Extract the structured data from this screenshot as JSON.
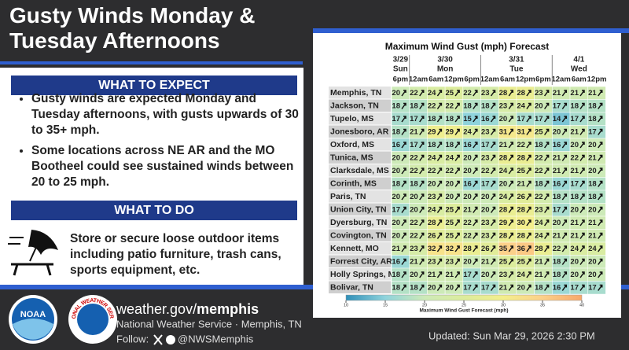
{
  "header": {
    "title_lines": [
      "Gusty Winds Monday &",
      "Tuesday Afternoons"
    ]
  },
  "expect": {
    "heading": "WHAT TO EXPECT",
    "bullets": [
      "Gusty winds are expected Monday and Tuesday afternoons, with gusts upwards of 30 to 35+ mph.",
      "Some locations across NE AR and the MO Bootheel could see sustained winds between 20 to 25 mph."
    ]
  },
  "todo": {
    "heading": "WHAT TO DO",
    "text": "Store or secure loose outdoor items including patio furniture, trash cans, sports equipment, etc."
  },
  "table": {
    "title": "Maximum Wind Gust (mph) Forecast",
    "days": [
      {
        "date": "3/29",
        "day": "Sun",
        "times": [
          "6pm"
        ]
      },
      {
        "date": "3/30",
        "day": "Mon",
        "times": [
          "12am",
          "6am",
          "12pm",
          "6pm"
        ]
      },
      {
        "date": "3/31",
        "day": "Tue",
        "times": [
          "12am",
          "6am",
          "12pm",
          "6pm"
        ]
      },
      {
        "date": "4/1",
        "day": "Wed",
        "times": [
          "12am",
          "6am",
          "12pm"
        ]
      }
    ],
    "rows": [
      {
        "place": "Memphis, TN",
        "values": [
          20,
          22,
          24,
          25,
          22,
          23,
          28,
          28,
          23,
          21,
          21,
          21
        ]
      },
      {
        "place": "Jackson, TN",
        "values": [
          18,
          18,
          22,
          22,
          18,
          18,
          23,
          24,
          20,
          17,
          18,
          18
        ]
      },
      {
        "place": "Tupelo, MS",
        "values": [
          17,
          17,
          18,
          18,
          15,
          16,
          20,
          17,
          17,
          14,
          17,
          18
        ]
      },
      {
        "place": "Jonesboro, AR",
        "values": [
          18,
          21,
          29,
          29,
          24,
          23,
          31,
          31,
          25,
          20,
          21,
          17
        ]
      },
      {
        "place": "Oxford, MS",
        "values": [
          16,
          17,
          18,
          18,
          16,
          17,
          21,
          22,
          18,
          16,
          20,
          20
        ]
      },
      {
        "place": "Tunica, MS",
        "values": [
          20,
          22,
          24,
          24,
          20,
          23,
          28,
          28,
          22,
          21,
          22,
          21
        ]
      },
      {
        "place": "Clarksdale, MS",
        "values": [
          20,
          22,
          22,
          22,
          20,
          22,
          24,
          25,
          22,
          21,
          21,
          20
        ]
      },
      {
        "place": "Corinth, MS",
        "values": [
          18,
          18,
          20,
          20,
          16,
          17,
          20,
          21,
          18,
          16,
          17,
          18
        ]
      },
      {
        "place": "Paris, TN",
        "values": [
          20,
          20,
          23,
          20,
          20,
          20,
          24,
          26,
          22,
          18,
          18,
          18
        ]
      },
      {
        "place": "Union City, TN",
        "values": [
          17,
          20,
          24,
          25,
          21,
          20,
          28,
          28,
          23,
          17,
          20,
          20
        ]
      },
      {
        "place": "Dyersburg, TN",
        "values": [
          20,
          22,
          28,
          25,
          22,
          23,
          29,
          30,
          24,
          20,
          21,
          21
        ]
      },
      {
        "place": "Covington, TN",
        "values": [
          20,
          22,
          26,
          25,
          22,
          23,
          28,
          28,
          24,
          21,
          21,
          21
        ]
      },
      {
        "place": "Kennett, MO",
        "values": [
          21,
          23,
          32,
          32,
          28,
          26,
          35,
          36,
          28,
          22,
          24,
          24
        ]
      },
      {
        "place": "Forrest City, AR",
        "values": [
          16,
          21,
          23,
          23,
          20,
          21,
          25,
          25,
          21,
          18,
          20,
          20
        ]
      },
      {
        "place": "Holly Springs, MS",
        "values": [
          18,
          20,
          21,
          21,
          17,
          20,
          23,
          24,
          21,
          18,
          20,
          20
        ]
      },
      {
        "place": "Bolivar, TN",
        "values": [
          18,
          18,
          20,
          20,
          17,
          17,
          21,
          20,
          18,
          16,
          17,
          17
        ]
      }
    ],
    "colorbar": {
      "title": "Maximum Wind Gust Forecast (mph)",
      "ticks": [
        10,
        15,
        20,
        25,
        30,
        35,
        40
      ],
      "colors": [
        "#2f8fb8",
        "#8fd3dc",
        "#cdeab8",
        "#dcec9c",
        "#f3ee8c",
        "#fcd08a",
        "#f7a86a"
      ]
    }
  },
  "footer": {
    "url_plain": "weather.gov/",
    "url_bold": "memphis",
    "office": "National Weather Service · Memphis, TN",
    "follow": "Follow:",
    "handle": "@NWSMemphis",
    "updated": "Updated: Sun Mar 29, 2026 2:30 PM",
    "noaa": "NOAA",
    "nws": "NATIONAL WEATHER SERVICE"
  }
}
